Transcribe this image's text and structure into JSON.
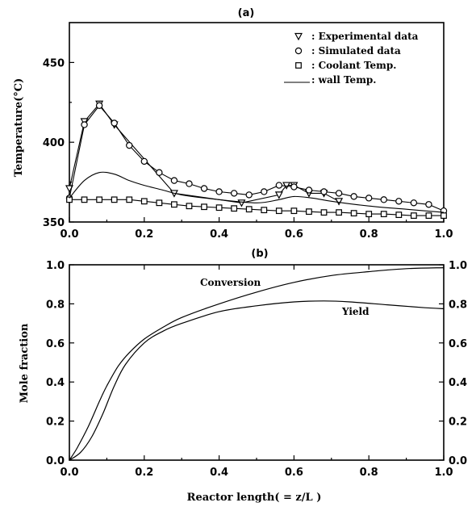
{
  "chart_data": [
    {
      "type": "line",
      "title": "(a)",
      "xlabel": "",
      "ylabel": "Temperature(°C)",
      "xlim": [
        0,
        1.0
      ],
      "ylim": [
        350,
        475
      ],
      "xticks": [
        "0.0",
        "0.2",
        "0.4",
        "0.6",
        "0.8",
        "1.0"
      ],
      "yticks": [
        "350",
        "400",
        "450"
      ],
      "legend_position": "top-right",
      "legend": [
        {
          "marker": "triangle-down",
          "label": ": Experimental data"
        },
        {
          "marker": "circle",
          "label": ": Simulated data"
        },
        {
          "marker": "square",
          "label": ": Coolant Temp."
        },
        {
          "marker": "line",
          "label": ": wall Temp."
        }
      ],
      "series": [
        {
          "marker": "triangle-down",
          "x": [
            0.0,
            0.04,
            0.08,
            0.12,
            0.28,
            0.46,
            0.56,
            0.58,
            0.6,
            0.64,
            0.68,
            0.72
          ],
          "y": [
            371,
            413,
            424,
            411,
            368,
            362,
            367,
            373,
            373,
            368,
            368,
            363
          ]
        },
        {
          "marker": "circle",
          "x": [
            0.0,
            0.04,
            0.08,
            0.12,
            0.16,
            0.2,
            0.24,
            0.28,
            0.32,
            0.36,
            0.4,
            0.44,
            0.48,
            0.52,
            0.56,
            0.6,
            0.64,
            0.68,
            0.72,
            0.76,
            0.8,
            0.84,
            0.88,
            0.92,
            0.96,
            1.0
          ],
          "y": [
            365,
            411,
            423,
            412,
            398,
            388,
            381,
            376,
            374,
            371,
            369,
            368,
            367,
            369,
            373,
            372,
            370,
            369,
            368,
            366,
            365,
            364,
            363,
            362,
            361,
            357
          ]
        },
        {
          "marker": "square",
          "x": [
            0.0,
            0.04,
            0.08,
            0.12,
            0.16,
            0.2,
            0.24,
            0.28,
            0.32,
            0.36,
            0.4,
            0.44,
            0.48,
            0.52,
            0.56,
            0.6,
            0.64,
            0.68,
            0.72,
            0.76,
            0.8,
            0.84,
            0.88,
            0.92,
            0.96,
            1.0
          ],
          "y": [
            364,
            364,
            364,
            364,
            364,
            363,
            362,
            361,
            360,
            359.5,
            359,
            358.5,
            358,
            357.5,
            357,
            357,
            356.5,
            356,
            356,
            355.5,
            355,
            355,
            354.5,
            354,
            354,
            354
          ]
        },
        {
          "marker": "line",
          "x": [
            0.0,
            0.04,
            0.08,
            0.12,
            0.16,
            0.2,
            0.25,
            0.3,
            0.4,
            0.5,
            0.56,
            0.6,
            0.65,
            0.7,
            0.8,
            0.9,
            1.0
          ],
          "y": [
            365,
            376,
            381,
            380,
            376,
            373,
            370,
            367,
            364,
            362,
            364,
            366,
            365,
            363,
            360,
            358,
            356
          ]
        }
      ]
    },
    {
      "type": "line",
      "title": "(b)",
      "xlabel": "Reactor length( = z/L )",
      "ylabel": "Mole fraction",
      "xlim": [
        0,
        1.0
      ],
      "ylim": [
        0,
        1.0
      ],
      "xticks": [
        "0.0",
        "0.2",
        "0.4",
        "0.6",
        "0.8",
        "1.0"
      ],
      "yticks": [
        "0.0",
        "0.2",
        "0.4",
        "0.6",
        "0.8",
        "1.0"
      ],
      "series": [
        {
          "name": "Conversion",
          "x": [
            0.0,
            0.02,
            0.05,
            0.08,
            0.1,
            0.13,
            0.16,
            0.2,
            0.25,
            0.3,
            0.4,
            0.5,
            0.6,
            0.7,
            0.8,
            0.9,
            1.0
          ],
          "y": [
            0.0,
            0.06,
            0.17,
            0.3,
            0.38,
            0.48,
            0.55,
            0.62,
            0.68,
            0.73,
            0.8,
            0.86,
            0.91,
            0.945,
            0.965,
            0.98,
            0.985
          ]
        },
        {
          "name": "Yield",
          "x": [
            0.0,
            0.03,
            0.06,
            0.09,
            0.12,
            0.15,
            0.2,
            0.25,
            0.3,
            0.4,
            0.5,
            0.6,
            0.68,
            0.75,
            0.85,
            0.95,
            1.0
          ],
          "y": [
            0.0,
            0.04,
            0.12,
            0.24,
            0.38,
            0.49,
            0.6,
            0.66,
            0.7,
            0.76,
            0.79,
            0.81,
            0.815,
            0.81,
            0.795,
            0.78,
            0.775
          ]
        }
      ]
    }
  ]
}
